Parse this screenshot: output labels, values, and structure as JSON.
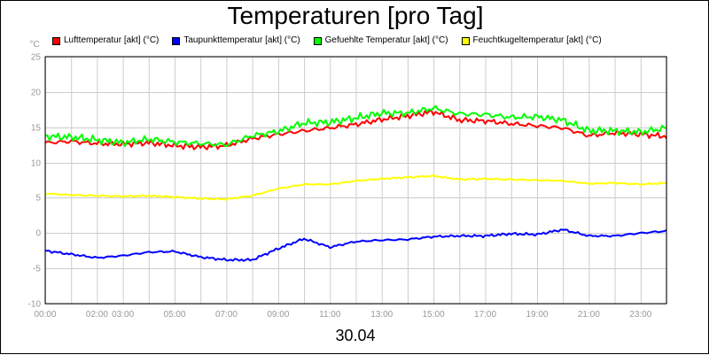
{
  "chart_data": {
    "type": "line",
    "title": "Temperaturen [pro Tag]",
    "xlabel": "30.04",
    "ylabel": "°C",
    "ylim": [
      -10,
      25
    ],
    "yticks": [
      25,
      20,
      15,
      10,
      5,
      0,
      -5,
      -10
    ],
    "xlim_hours": [
      0,
      24
    ],
    "xticks": [
      {
        "hour": 0,
        "label": "00:00"
      },
      {
        "hour": 2,
        "label": "02:00"
      },
      {
        "hour": 3,
        "label": "03:00"
      },
      {
        "hour": 5,
        "label": "05:00"
      },
      {
        "hour": 7,
        "label": "07:00"
      },
      {
        "hour": 9,
        "label": "09:00"
      },
      {
        "hour": 11,
        "label": "11:00"
      },
      {
        "hour": 13,
        "label": "13:00"
      },
      {
        "hour": 15,
        "label": "15:00"
      },
      {
        "hour": 17,
        "label": "17:00"
      },
      {
        "hour": 19,
        "label": "19:00"
      },
      {
        "hour": 21,
        "label": "21:00"
      },
      {
        "hour": 23,
        "label": "23:00"
      }
    ],
    "grid": true,
    "x": [
      0,
      1,
      2,
      3,
      4,
      5,
      6,
      7,
      8,
      9,
      10,
      11,
      12,
      13,
      14,
      15,
      16,
      17,
      18,
      19,
      20,
      21,
      22,
      23,
      24
    ],
    "series": [
      {
        "name": "Lufttemperatur [akt] (°C)",
        "color": "#ff0000",
        "values": [
          12.8,
          13.0,
          12.7,
          12.6,
          12.8,
          12.4,
          12.2,
          12.4,
          13.4,
          14.0,
          14.5,
          14.9,
          15.4,
          16.1,
          16.6,
          17.2,
          16.0,
          15.9,
          15.5,
          15.2,
          14.9,
          13.8,
          14.2,
          14.0,
          13.7
        ]
      },
      {
        "name": "Taupunkttemperatur [akt] (°C)",
        "color": "#0000ff",
        "values": [
          -2.5,
          -3.0,
          -3.5,
          -3.2,
          -2.7,
          -2.6,
          -3.4,
          -3.8,
          -3.8,
          -2.2,
          -0.8,
          -2.0,
          -1.2,
          -1.0,
          -0.9,
          -0.5,
          -0.4,
          -0.4,
          -0.1,
          -0.2,
          0.5,
          -0.4,
          -0.4,
          0.0,
          0.3
        ]
      },
      {
        "name": "Gefuehlte Temperatur [akt] (°C)",
        "color": "#00ff00",
        "values": [
          13.7,
          13.6,
          13.2,
          12.8,
          13.3,
          12.9,
          12.7,
          12.5,
          13.8,
          14.4,
          15.6,
          15.7,
          16.3,
          17.0,
          17.0,
          17.7,
          16.9,
          16.8,
          16.4,
          16.5,
          16.0,
          14.5,
          14.5,
          14.3,
          14.9
        ]
      },
      {
        "name": "Feuchtkugeltemperatur [akt] (°C)",
        "color": "#ffff00",
        "values": [
          5.6,
          5.4,
          5.3,
          5.2,
          5.3,
          5.1,
          4.9,
          4.8,
          5.3,
          6.3,
          6.9,
          6.9,
          7.4,
          7.7,
          7.9,
          8.1,
          7.6,
          7.7,
          7.6,
          7.5,
          7.4,
          7.0,
          7.1,
          6.9,
          7.1
        ]
      }
    ]
  }
}
